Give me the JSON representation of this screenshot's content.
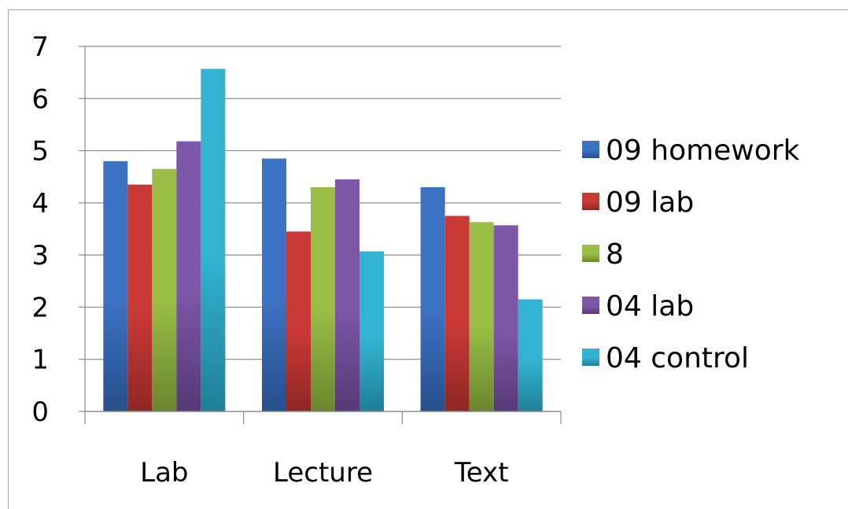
{
  "chart_data": {
    "type": "bar",
    "title": "",
    "xlabel": "",
    "ylabel": "",
    "categories": [
      "Lab",
      "Lecture",
      "Text"
    ],
    "ylim": [
      0,
      7
    ],
    "yticks": [
      "0",
      "1",
      "2",
      "3",
      "4",
      "5",
      "6",
      "7"
    ],
    "grid": true,
    "legend_position": "right",
    "series": [
      {
        "name": "09 homework",
        "values": [
          4.8,
          4.85,
          4.3
        ],
        "color": "#3c72c3",
        "color_dark": "#274f8c"
      },
      {
        "name": "09 lab",
        "values": [
          4.35,
          3.45,
          3.75
        ],
        "color": "#c93a37",
        "color_dark": "#8f2624"
      },
      {
        "name": "8",
        "values": [
          4.65,
          4.3,
          3.63
        ],
        "color": "#9abd45",
        "color_dark": "#6b862e"
      },
      {
        "name": "04 lab",
        "values": [
          5.18,
          4.45,
          3.57
        ],
        "color": "#7d58a8",
        "color_dark": "#553a76"
      },
      {
        "name": "04 control",
        "values": [
          6.57,
          3.07,
          2.15
        ],
        "color": "#32b3d1",
        "color_dark": "#1f7f96"
      }
    ]
  }
}
